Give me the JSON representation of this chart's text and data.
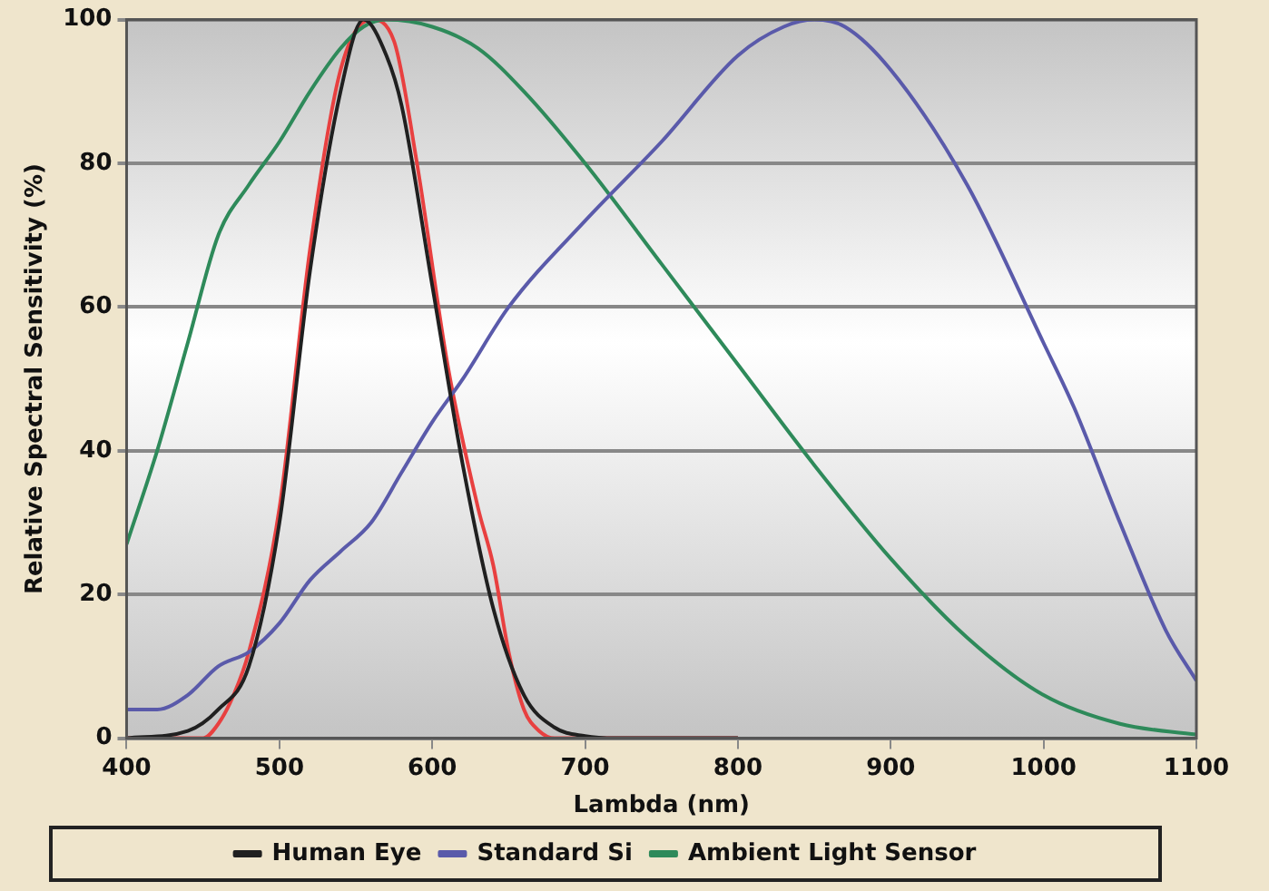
{
  "chart_data": {
    "type": "line",
    "xlabel": "Lambda (nm)",
    "ylabel": "Relative Spectral Sensitivity (%)",
    "xlim": [
      400,
      1100
    ],
    "xticks": [
      400,
      500,
      600,
      700,
      800,
      900,
      1000,
      1100
    ],
    "ylim": [
      0,
      100
    ],
    "yticks": [
      0,
      20,
      40,
      60,
      80,
      100
    ],
    "grid": "y",
    "legend": "bottom",
    "marker": "none",
    "line_style": "solid",
    "series": [
      {
        "name": "Human Eye",
        "color": "#202020",
        "x": [
          400,
          440,
          460,
          480,
          500,
          520,
          540,
          555,
          570,
          580,
          600,
          620,
          640,
          660,
          680,
          700,
          720,
          800
        ],
        "values": [
          0,
          1,
          4,
          10,
          30,
          65,
          90,
          100,
          95,
          88,
          63,
          38,
          18,
          6,
          1.5,
          0.3,
          0,
          0
        ]
      },
      {
        "name": "Standard Si",
        "color": "#5a5aaa",
        "x": [
          400,
          420,
          440,
          460,
          480,
          500,
          520,
          540,
          560,
          580,
          600,
          620,
          650,
          700,
          750,
          800,
          830,
          850,
          870,
          900,
          950,
          1000,
          1020,
          1050,
          1080,
          1100
        ],
        "values": [
          4,
          4,
          6,
          10,
          12,
          16,
          22,
          26,
          30,
          37,
          44,
          50,
          60,
          72,
          83,
          95,
          99,
          100,
          99,
          93,
          77,
          55,
          46,
          30,
          15,
          8
        ]
      },
      {
        "name": "Ambient Light Sensor",
        "color": "#2e8a5a",
        "x": [
          400,
          420,
          440,
          460,
          480,
          500,
          520,
          540,
          555,
          570,
          600,
          630,
          660,
          700,
          750,
          800,
          850,
          900,
          950,
          1000,
          1050,
          1100
        ],
        "values": [
          27,
          40,
          55,
          70,
          77,
          83,
          90,
          96,
          99,
          100,
          99,
          96,
          90,
          80,
          66,
          52,
          38,
          25,
          14,
          6,
          2,
          0.5
        ]
      },
      {
        "color": "#e84040",
        "x": [
          400,
          450,
          460,
          470,
          480,
          500,
          520,
          540,
          560,
          575,
          590,
          610,
          630,
          640,
          650,
          660,
          670,
          680,
          700,
          800
        ],
        "values": [
          0,
          0,
          2,
          6,
          12,
          32,
          68,
          93,
          100,
          97,
          80,
          52,
          32,
          24,
          12,
          4,
          1,
          0,
          0,
          0
        ]
      }
    ]
  }
}
